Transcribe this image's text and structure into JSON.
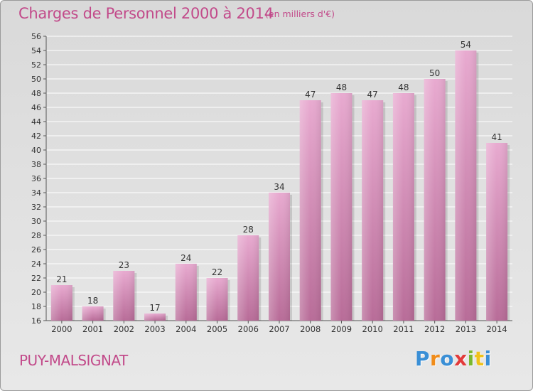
{
  "chart_data": {
    "type": "bar",
    "title": "Charges de Personnel 2000 à 2014",
    "subtitle": "(en milliers d'€)",
    "categories": [
      "2000",
      "2001",
      "2002",
      "2003",
      "2004",
      "2005",
      "2006",
      "2007",
      "2008",
      "2009",
      "2010",
      "2011",
      "2012",
      "2013",
      "2014"
    ],
    "values": [
      21,
      18,
      23,
      17,
      24,
      22,
      28,
      34,
      47,
      48,
      47,
      48,
      50,
      54,
      41
    ],
    "ylim": [
      16,
      56
    ],
    "ytick_step": 2,
    "grid": true,
    "bar_color": "#d98ab8"
  },
  "footer": {
    "commune": "PUY-MALSIGNAT"
  },
  "logo": {
    "letters": [
      "P",
      "r",
      "o",
      "x",
      "i",
      "t",
      "i"
    ],
    "colors": [
      "#3a8fd6",
      "#f08c1a",
      "#3a8fd6",
      "#e23b3b",
      "#7ab82e",
      "#f0c21a",
      "#3a8fd6"
    ]
  }
}
